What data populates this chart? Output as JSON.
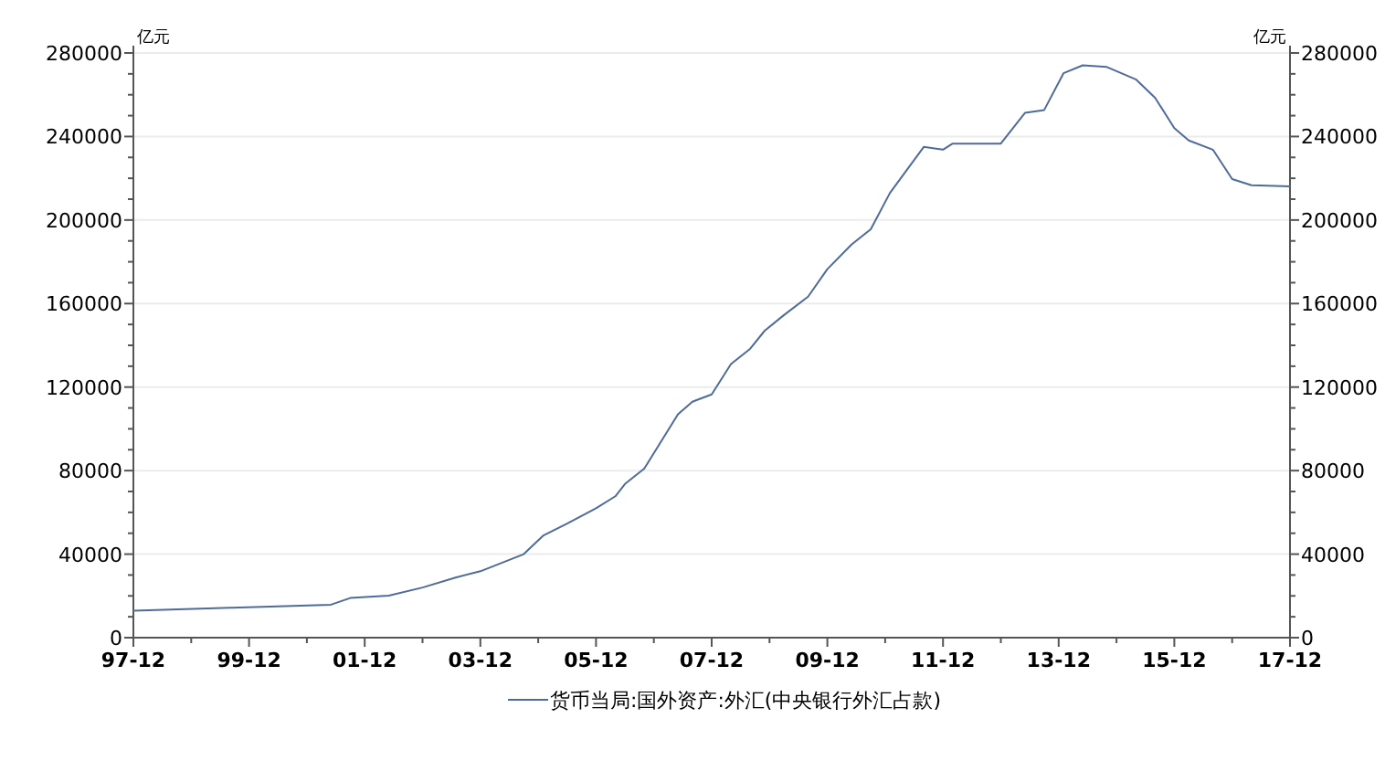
{
  "chart_data": {
    "type": "line",
    "ylabel": "亿元",
    "y2label": "亿元",
    "x": [
      "1997-12",
      "1999-08",
      "2001-05",
      "2001-09",
      "2002-05",
      "2002-12",
      "2003-07",
      "2003-12",
      "2004-09",
      "2005-01",
      "2005-06",
      "2005-12",
      "2006-04",
      "2006-06",
      "2006-10",
      "2007-05",
      "2007-08",
      "2007-12",
      "2008-04",
      "2008-08",
      "2008-11",
      "2009-03",
      "2009-08",
      "2009-12",
      "2010-05",
      "2010-09",
      "2011-01",
      "2011-08",
      "2011-12",
      "2012-02",
      "2012-12",
      "2013-05",
      "2013-09",
      "2014-01",
      "2014-05",
      "2014-10",
      "2015-04",
      "2015-08",
      "2015-12",
      "2016-03",
      "2016-08",
      "2016-12",
      "2017-04",
      "2017-12"
    ],
    "series": [
      {
        "name": "货币当局:国外资产:外汇(中央银行外汇占款)",
        "color": "#4f6b9a",
        "values": [
          12850,
          14300,
          15800,
          19000,
          20100,
          24000,
          28900,
          31800,
          40000,
          48800,
          54600,
          62000,
          67700,
          73600,
          80900,
          107000,
          113000,
          116500,
          131000,
          138400,
          147000,
          154500,
          163300,
          176500,
          188200,
          195600,
          213000,
          235000,
          233700,
          236600,
          236600,
          251300,
          252700,
          270300,
          274100,
          273300,
          267400,
          258600,
          244000,
          238100,
          233700,
          219600,
          216700,
          216100
        ]
      }
    ],
    "xlim": [
      "1997-12",
      "2017-12"
    ],
    "xticks": [
      {
        "value": "1997-12",
        "label": "97-12"
      },
      {
        "value": "1998-12",
        "label": null
      },
      {
        "value": "1999-12",
        "label": "99-12"
      },
      {
        "value": "2000-12",
        "label": null
      },
      {
        "value": "2001-12",
        "label": "01-12"
      },
      {
        "value": "2002-12",
        "label": null
      },
      {
        "value": "2003-12",
        "label": "03-12"
      },
      {
        "value": "2004-12",
        "label": null
      },
      {
        "value": "2005-12",
        "label": "05-12"
      },
      {
        "value": "2006-12",
        "label": null
      },
      {
        "value": "2007-12",
        "label": "07-12"
      },
      {
        "value": "2008-12",
        "label": null
      },
      {
        "value": "2009-12",
        "label": "09-12"
      },
      {
        "value": "2010-12",
        "label": null
      },
      {
        "value": "2011-12",
        "label": "11-12"
      },
      {
        "value": "2012-12",
        "label": null
      },
      {
        "value": "2013-12",
        "label": "13-12"
      },
      {
        "value": "2014-12",
        "label": null
      },
      {
        "value": "2015-12",
        "label": "15-12"
      },
      {
        "value": "2016-12",
        "label": null
      },
      {
        "value": "2017-12",
        "label": "17-12"
      }
    ],
    "ylim": [
      0,
      280000
    ],
    "yticks": [
      0,
      {
        "value": 10000,
        "label": null
      },
      {
        "value": 20000,
        "label": null
      },
      {
        "value": 30000,
        "label": null
      },
      40000,
      {
        "value": 50000,
        "label": null
      },
      {
        "value": 60000,
        "label": null
      },
      {
        "value": 70000,
        "label": null
      },
      80000,
      {
        "value": 90000,
        "label": null
      },
      {
        "value": 100000,
        "label": null
      },
      {
        "value": 110000,
        "label": null
      },
      120000,
      {
        "value": 130000,
        "label": null
      },
      {
        "value": 140000,
        "label": null
      },
      {
        "value": 150000,
        "label": null
      },
      160000,
      {
        "value": 170000,
        "label": null
      },
      {
        "value": 180000,
        "label": null
      },
      {
        "value": 190000,
        "label": null
      },
      200000,
      {
        "value": 210000,
        "label": null
      },
      {
        "value": 220000,
        "label": null
      },
      {
        "value": 230000,
        "label": null
      },
      240000,
      {
        "value": 250000,
        "label": null
      },
      {
        "value": 260000,
        "label": null
      },
      {
        "value": 270000,
        "label": null
      },
      280000
    ],
    "y2lim": [
      0,
      280000
    ],
    "y2ticks": [
      0,
      {
        "value": 10000,
        "label": null
      },
      {
        "value": 20000,
        "label": null
      },
      {
        "value": 30000,
        "label": null
      },
      40000,
      {
        "value": 50000,
        "label": null
      },
      {
        "value": 60000,
        "label": null
      },
      {
        "value": 70000,
        "label": null
      },
      80000,
      {
        "value": 90000,
        "label": null
      },
      {
        "value": 100000,
        "label": null
      },
      {
        "value": 110000,
        "label": null
      },
      120000,
      {
        "value": 130000,
        "label": null
      },
      {
        "value": 140000,
        "label": null
      },
      {
        "value": 150000,
        "label": null
      },
      160000,
      {
        "value": 170000,
        "label": null
      },
      {
        "value": 180000,
        "label": null
      },
      {
        "value": 190000,
        "label": null
      },
      200000,
      {
        "value": 210000,
        "label": null
      },
      {
        "value": 220000,
        "label": null
      },
      {
        "value": 230000,
        "label": null
      },
      240000,
      {
        "value": 250000,
        "label": null
      },
      {
        "value": 260000,
        "label": null
      },
      {
        "value": 270000,
        "label": null
      },
      280000
    ],
    "grid": "y",
    "legend": "bottom",
    "marker": "none",
    "line_style": "solid"
  }
}
